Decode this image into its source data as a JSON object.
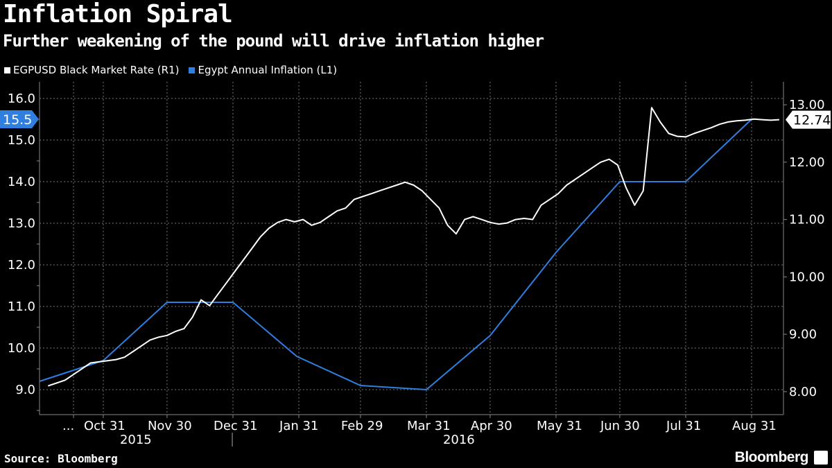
{
  "chart_data": {
    "type": "line",
    "title": "Inflation Spiral",
    "subtitle": "Further weakening of the pound will drive inflation higher",
    "source": "Source: Bloomberg",
    "brand": "Bloomberg",
    "colors": {
      "background": "#000000",
      "inflation": "#2f7fe0",
      "rate": "#ffffff",
      "grid": "#666666"
    },
    "left_axis": {
      "ylim": [
        8.4,
        16.4
      ],
      "ticks": [
        "9.0",
        "10.0",
        "11.0",
        "12.0",
        "13.0",
        "14.0",
        "15.0",
        "16.0"
      ],
      "tick_values": [
        9,
        10,
        11,
        12,
        13,
        14,
        15,
        16
      ]
    },
    "right_axis": {
      "ylim": [
        7.6,
        13.4
      ],
      "ticks": [
        "8.00",
        "9.00",
        "10.00",
        "11.00",
        "12.00",
        "13.00"
      ],
      "tick_values": [
        8,
        9,
        10,
        11,
        12,
        13
      ]
    },
    "x_ticks": [
      {
        "label": "...",
        "d": 16
      },
      {
        "label": "Oct 31",
        "d": 30
      },
      {
        "label": "Nov 30",
        "d": 60
      },
      {
        "label": "Dec 31",
        "d": 91
      },
      {
        "label": "Jan 31",
        "d": 122
      },
      {
        "label": "Feb 29",
        "d": 151
      },
      {
        "label": "Mar 31",
        "d": 182
      },
      {
        "label": "Apr 30",
        "d": 212
      },
      {
        "label": "May 31",
        "d": 243
      },
      {
        "label": "Jun 30",
        "d": 273
      },
      {
        "label": "Jul 31",
        "d": 304
      },
      {
        "label": "Aug 31",
        "d": 335
      }
    ],
    "x_range": [
      0,
      350
    ],
    "year_labels": [
      {
        "label": "2015",
        "d": 45
      },
      {
        "label": "2016",
        "d": 197
      }
    ],
    "year_divider_d": 92,
    "series": [
      {
        "name": "Egypt Annual Inflation (L1)",
        "axis": "left",
        "last_label": "15.5",
        "x": [
          0,
          30,
          60,
          91,
          121,
          151,
          182,
          212,
          243,
          273,
          304,
          335
        ],
        "values": [
          9.2,
          9.7,
          11.1,
          11.1,
          9.8,
          9.1,
          9.0,
          10.3,
          12.3,
          14.0,
          14.0,
          15.5
        ]
      },
      {
        "name": "EGPUSD Black Market Rate (R1)",
        "axis": "right",
        "last_label": "12.74",
        "x": [
          4,
          8,
          12,
          16,
          20,
          24,
          28,
          32,
          36,
          40,
          44,
          48,
          52,
          56,
          60,
          64,
          68,
          72,
          76,
          80,
          84,
          88,
          92,
          96,
          100,
          104,
          108,
          112,
          116,
          120,
          124,
          128,
          132,
          136,
          140,
          144,
          148,
          152,
          156,
          160,
          164,
          168,
          172,
          176,
          180,
          184,
          188,
          192,
          196,
          200,
          204,
          208,
          212,
          216,
          220,
          224,
          228,
          232,
          236,
          240,
          244,
          248,
          252,
          256,
          260,
          264,
          268,
          272,
          276,
          280,
          284,
          288,
          292,
          296,
          300,
          304,
          308,
          312,
          316,
          320,
          324,
          328,
          332,
          336,
          340,
          344,
          348
        ],
        "values": [
          8.1,
          8.15,
          8.2,
          8.3,
          8.4,
          8.5,
          8.52,
          8.54,
          8.56,
          8.6,
          8.7,
          8.8,
          8.9,
          8.95,
          8.98,
          9.05,
          9.1,
          9.3,
          9.6,
          9.5,
          9.7,
          9.9,
          10.1,
          10.3,
          10.5,
          10.7,
          10.85,
          10.95,
          11.0,
          10.96,
          11.0,
          10.9,
          10.95,
          11.05,
          11.15,
          11.2,
          11.35,
          11.4,
          11.45,
          11.5,
          11.55,
          11.6,
          11.65,
          11.6,
          11.5,
          11.35,
          11.2,
          10.9,
          10.75,
          11.0,
          11.05,
          11.0,
          10.95,
          10.92,
          10.94,
          11.0,
          11.02,
          11.0,
          11.25,
          11.35,
          11.45,
          11.6,
          11.7,
          11.8,
          11.9,
          12.0,
          12.05,
          11.95,
          11.55,
          11.25,
          11.5,
          12.95,
          12.7,
          12.5,
          12.45,
          12.44,
          12.5,
          12.55,
          12.6,
          12.66,
          12.7,
          12.72,
          12.73,
          12.75,
          12.74,
          12.73,
          12.74
        ]
      }
    ]
  }
}
